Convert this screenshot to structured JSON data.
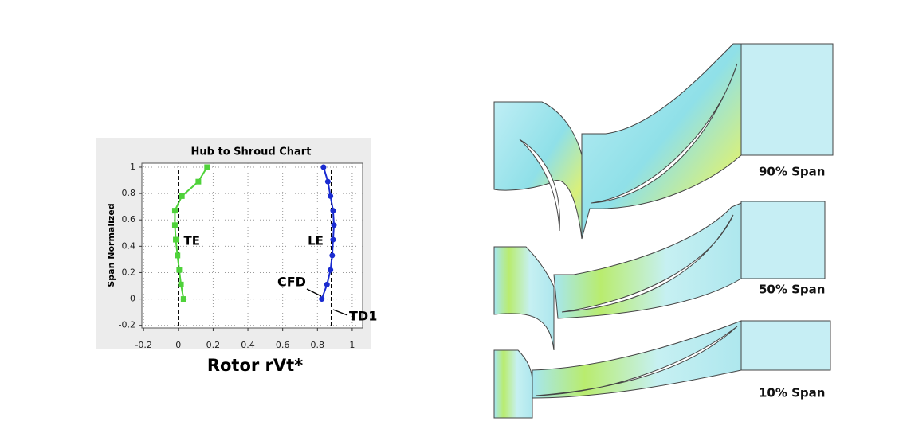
{
  "chart_data": {
    "type": "scatter",
    "title": "Hub to Shroud Chart",
    "x_label": "Rotor rVt*",
    "y_label": "Span Normalized",
    "xlim": [
      -0.21,
      1.06
    ],
    "ylim": [
      -0.22,
      1.03
    ],
    "xticks": [
      -0.2,
      0,
      0.2,
      0.4,
      0.6,
      0.8,
      1
    ],
    "yticks": [
      -0.2,
      0,
      0.2,
      0.4,
      0.6,
      0.8,
      1
    ],
    "grid": true,
    "reference_lines": [
      0,
      0.88
    ],
    "series": [
      {
        "name": "TE",
        "color": "#4fd23a",
        "marker": "square",
        "x": [
          0.165,
          0.115,
          0.02,
          -0.02,
          -0.02,
          -0.015,
          -0.005,
          0.005,
          0.015,
          0.03
        ],
        "values": [
          1.0,
          0.89,
          0.78,
          0.67,
          0.56,
          0.45,
          0.33,
          0.22,
          0.11,
          0.0
        ]
      },
      {
        "name": "LE",
        "color": "#1a2bd0",
        "marker": "circle",
        "x": [
          0.835,
          0.86,
          0.875,
          0.89,
          0.895,
          0.89,
          0.885,
          0.875,
          0.855,
          0.825
        ],
        "values": [
          1.0,
          0.89,
          0.78,
          0.67,
          0.56,
          0.45,
          0.33,
          0.22,
          0.11,
          0.0
        ]
      }
    ],
    "annotations": [
      "CFD",
      "TD1"
    ]
  },
  "span_views": [
    "90% Span",
    "50% Span",
    "10% Span"
  ]
}
